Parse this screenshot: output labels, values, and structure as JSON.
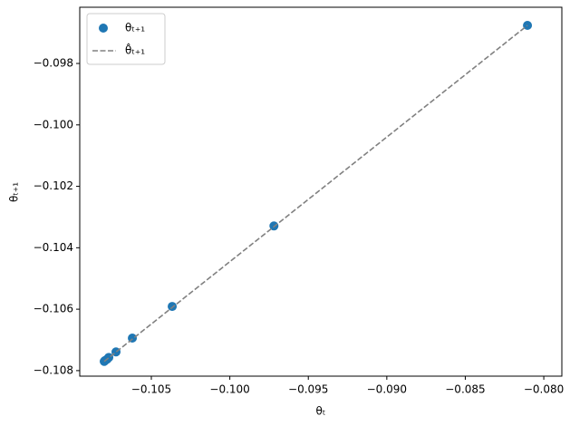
{
  "chart_data": {
    "type": "scatter",
    "x_label": "θₜ",
    "y_label": "θₜ₊₁",
    "xlim": [
      -0.10956,
      -0.07885
    ],
    "ylim": [
      -0.10818,
      -0.09617
    ],
    "xticks": [
      {
        "value": -0.105,
        "label": "−0.105"
      },
      {
        "value": -0.1,
        "label": "−0.100"
      },
      {
        "value": -0.095,
        "label": "−0.095"
      },
      {
        "value": -0.09,
        "label": "−0.090"
      },
      {
        "value": -0.085,
        "label": "−0.085"
      },
      {
        "value": -0.08,
        "label": "−0.080"
      }
    ],
    "yticks": [
      {
        "value": -0.108,
        "label": "−0.108"
      },
      {
        "value": -0.106,
        "label": "−0.106"
      },
      {
        "value": -0.104,
        "label": "−0.104"
      },
      {
        "value": -0.102,
        "label": "−0.102"
      },
      {
        "value": -0.1,
        "label": "−0.100"
      },
      {
        "value": -0.098,
        "label": "−0.098"
      }
    ],
    "legend_position": "upper left",
    "series": [
      {
        "name": "θₜ₊₁",
        "kind": "scatter",
        "color": "#1f77b4",
        "x": [
          -0.08104,
          -0.09719,
          -0.10367,
          -0.10621,
          -0.10725,
          -0.10771,
          -0.10782,
          -0.10794,
          -0.108
        ],
        "values": [
          -0.09676,
          -0.10329,
          -0.10591,
          -0.10694,
          -0.10739,
          -0.10757,
          -0.10763,
          -0.10767,
          -0.1077
        ]
      },
      {
        "name": "θ̂ₜ₊₁",
        "kind": "line",
        "color": "#808080",
        "dashed": true,
        "x": [
          -0.108,
          -0.08104
        ],
        "values": [
          -0.1077,
          -0.09676
        ]
      }
    ]
  }
}
